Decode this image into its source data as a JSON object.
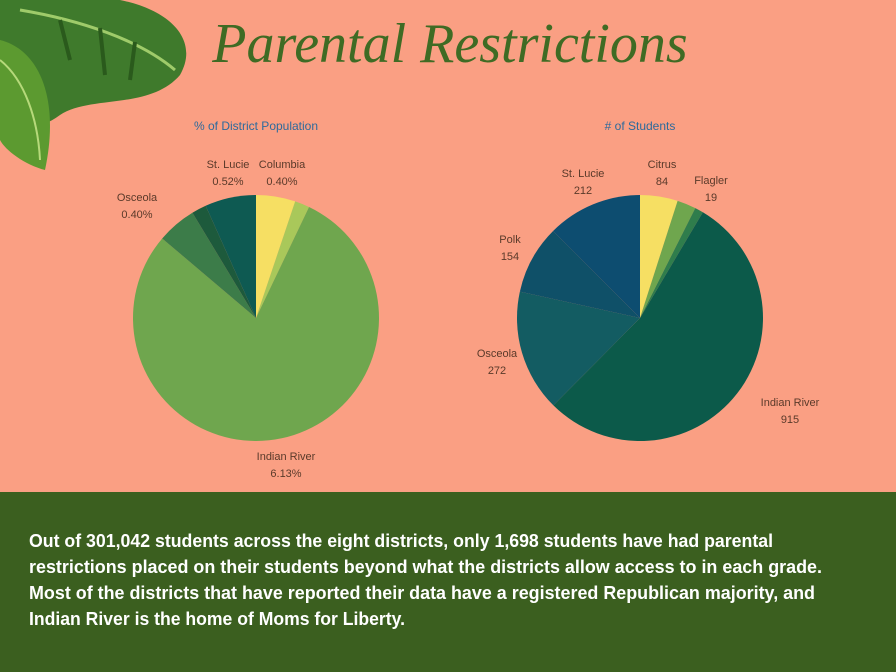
{
  "title": "Parental Restrictions",
  "chart_data": [
    {
      "type": "pie",
      "title": "% of District Population",
      "categories": [
        "Columbia",
        null,
        "Indian River",
        "Osceola",
        null,
        "St. Lucie"
      ],
      "values": [
        0.4,
        0.15,
        6.13,
        0.4,
        0.15,
        0.52
      ],
      "value_labels": [
        "0.40%",
        null,
        "6.13%",
        "0.40%",
        null,
        "0.52%"
      ],
      "colors": [
        "#f6df63",
        "#a9c85a",
        "#6fa64e",
        "#3c7c49",
        "#1d5a3c",
        "#0e5a52"
      ]
    },
    {
      "type": "pie",
      "title": "# of Students",
      "categories": [
        "Citrus",
        null,
        "Flagler",
        "Indian River",
        "Osceola",
        "Polk",
        "St. Lucie"
      ],
      "values": [
        84,
        42,
        19,
        915,
        272,
        154,
        212
      ],
      "colors": [
        "#f6df63",
        "#6fa64e",
        "#2f7d4c",
        "#0c5a4a",
        "#135c62",
        "#0f5068",
        "#0d4d70"
      ]
    }
  ],
  "footer": [
    "Out of 301,042 students across the eight districts, only 1,698 students have had parental",
    "restrictions placed on their students beyond what the districts allow access to in each grade.",
    "Most of the districts that have reported their data have a registered Republican majority, and",
    "Indian River is the home of Moms for Liberty."
  ]
}
